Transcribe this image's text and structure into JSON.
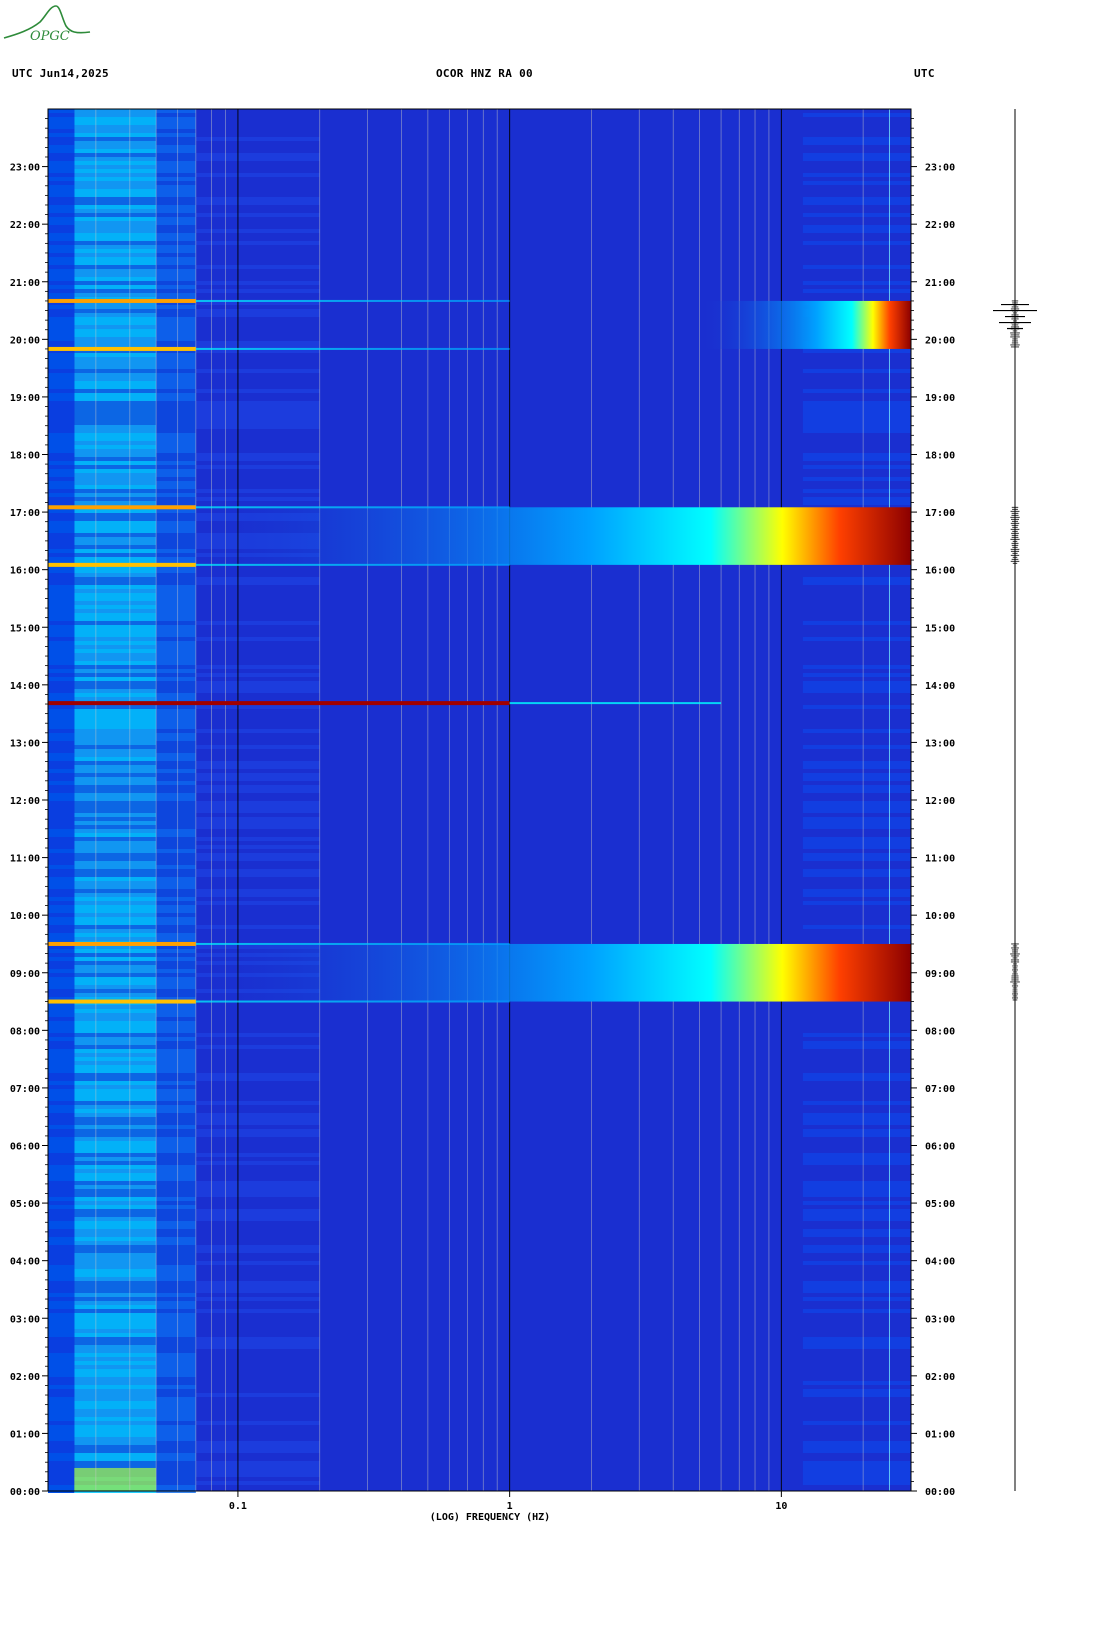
{
  "logo": {
    "text": "OPGC",
    "color": "#2e8b3a"
  },
  "header": {
    "left_label": "UTC  Jun14,2025",
    "center_label": "OCOR HNZ RA 00",
    "right_label": "UTC"
  },
  "chart_data": {
    "type": "heatmap",
    "title": "OCOR HNZ RA 00",
    "xlabel": "(LOG) FREQUENCY (HZ)",
    "ylabel": "UTC",
    "x_scale": "log",
    "xlim": [
      0.02,
      30
    ],
    "ylim": [
      "00:00",
      "24:00"
    ],
    "x_ticks": [
      {
        "value": 0.1,
        "label": "0.1"
      },
      {
        "value": 1,
        "label": "1"
      },
      {
        "value": 10,
        "label": "10"
      }
    ],
    "y_ticks": [
      "00:00",
      "01:00",
      "02:00",
      "03:00",
      "04:00",
      "05:00",
      "06:00",
      "07:00",
      "08:00",
      "09:00",
      "10:00",
      "11:00",
      "12:00",
      "13:00",
      "14:00",
      "15:00",
      "16:00",
      "17:00",
      "18:00",
      "19:00",
      "20:00",
      "21:00",
      "22:00",
      "23:00"
    ],
    "colormap": [
      "#0000a0",
      "#0030e0",
      "#00a0ff",
      "#00ffff",
      "#ffff00",
      "#ff8000",
      "#ff0000",
      "#800000"
    ],
    "background_color": "#1a2fd0",
    "events": [
      {
        "start": "08:30",
        "end": "09:30",
        "kind": "high-frequency broadband energy",
        "peak_color": "#8b0000"
      },
      {
        "start": "16:05",
        "end": "17:05",
        "kind": "high-frequency broadband energy",
        "peak_color": "#8b0000"
      },
      {
        "start": "19:50",
        "end": "20:40",
        "kind": "high-frequency energy",
        "peak_color": "#8b0000"
      },
      {
        "start": "13:40",
        "end": "13:42",
        "kind": "narrow low-frequency line",
        "peak_color": "#a00000"
      }
    ]
  }
}
